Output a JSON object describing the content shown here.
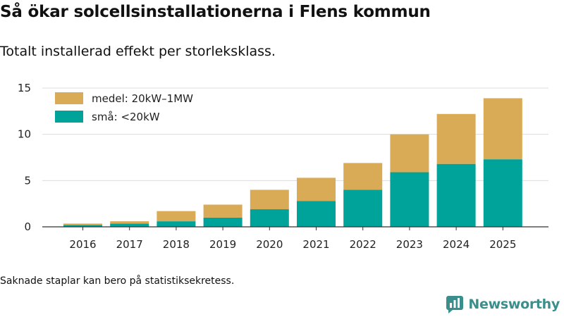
{
  "title": "Så ökar solcellsinstallationerna i Flens kommun",
  "subtitle": "Totalt installerad effekt per storleksklass.",
  "footnote": "Saknade staplar kan bero på statistiksekretess.",
  "brand": {
    "name": "Newsworthy",
    "logo_icon": "newsworthy-logo-icon",
    "color": "#3a8f8c"
  },
  "chart_data": {
    "type": "bar",
    "stacked": true,
    "title": "Så ökar solcellsinstallationerna i Flens kommun",
    "subtitle": "Totalt installerad effekt per storleksklass.",
    "xlabel": "",
    "ylabel": "",
    "categories": [
      "2016",
      "2017",
      "2018",
      "2019",
      "2020",
      "2021",
      "2022",
      "2023",
      "2024",
      "2025"
    ],
    "ylim": [
      0,
      15
    ],
    "yticks": [
      0,
      5,
      10,
      15
    ],
    "grid": true,
    "legend_position": "top-left",
    "series": [
      {
        "name": "små: <20kW",
        "color": "#00a39a",
        "values": [
          0.2,
          0.35,
          0.6,
          1.0,
          1.9,
          2.8,
          4.0,
          5.9,
          6.8,
          7.3
        ]
      },
      {
        "name": "medel: 20kW–1MW",
        "color": "#d9ab57",
        "values": [
          0.15,
          0.25,
          1.1,
          1.4,
          2.1,
          2.5,
          2.9,
          4.1,
          5.4,
          6.6
        ]
      }
    ]
  }
}
